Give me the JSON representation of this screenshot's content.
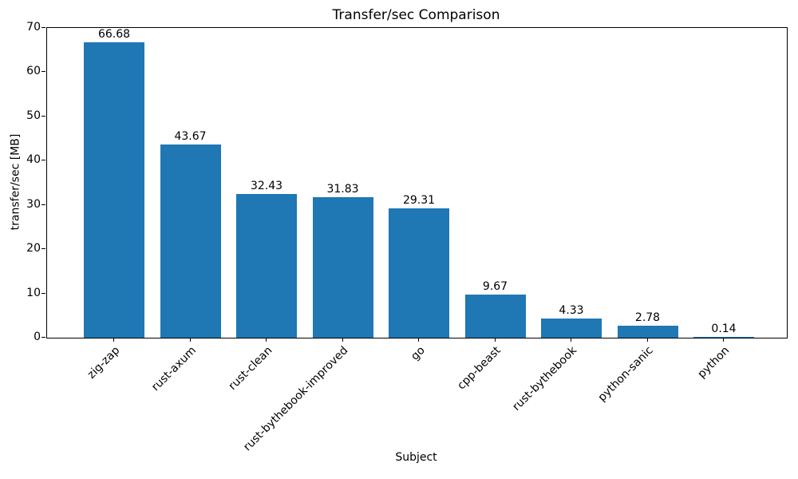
{
  "chart_data": {
    "type": "bar",
    "title": "Transfer/sec Comparison",
    "xlabel": "Subject",
    "ylabel": "transfer/sec [MB]",
    "categories": [
      "zig-zap",
      "rust-axum",
      "rust-clean",
      "rust-bythebook-improved",
      "go",
      "cpp-beast",
      "rust-bythebook",
      "python-sanic",
      "python"
    ],
    "values": [
      66.68,
      43.67,
      32.43,
      31.83,
      29.31,
      9.67,
      4.33,
      2.78,
      0.14
    ],
    "value_labels": [
      "66.68",
      "43.67",
      "32.43",
      "31.83",
      "29.31",
      "9.67",
      "4.33",
      "2.78",
      "0.14"
    ],
    "ylim": [
      0,
      70
    ],
    "yticks": [
      0,
      10,
      20,
      30,
      40,
      50,
      60,
      70
    ],
    "bar_color": "#1f77b4",
    "axis_color": "#000000",
    "background_color": "#ffffff",
    "grid": false,
    "legend_position": "none"
  }
}
